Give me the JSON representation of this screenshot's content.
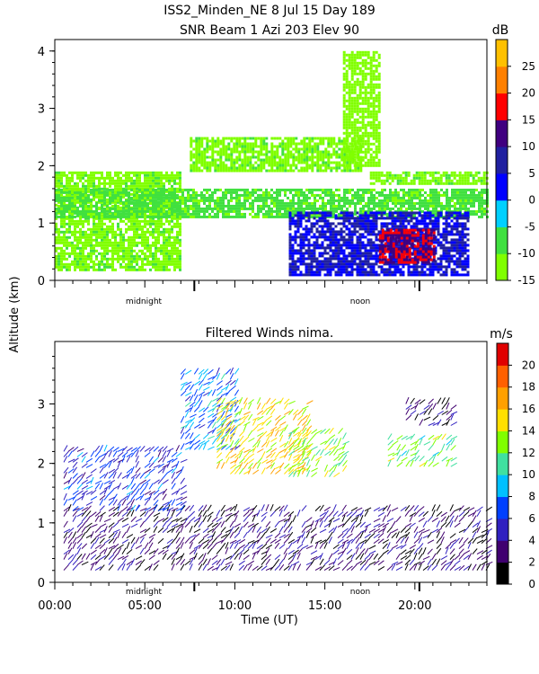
{
  "header": {
    "line1": "ISS2_Minden_NE    8 Jul 15 Day 189",
    "line2": "SNR Beam 1 Azi 203 Elev 90"
  },
  "shared": {
    "ylabel": "Altitude (km)",
    "xlabel": "Time (UT)",
    "marker_midnight": "midnight",
    "marker_noon": "noon"
  },
  "chart_data": [
    {
      "type": "heatmap",
      "title": "SNR Beam 1 Azi 203 Elev 90",
      "ylabel": "Altitude (km)",
      "y_ticks": [
        0,
        1,
        2,
        3,
        4
      ],
      "ylim": [
        0,
        4.2
      ],
      "xlim": [
        0,
        24
      ],
      "colorbar": {
        "unit": "dB",
        "range": [
          -15,
          30
        ],
        "ticks": [
          -15,
          -10,
          -5,
          0,
          5,
          10,
          15,
          20,
          25
        ],
        "colors": [
          "#80ff00",
          "#40e040",
          "#00d0ff",
          "#0000ff",
          "#2020a0",
          "#400080",
          "#ff0000",
          "#ff8000",
          "#ffc000"
        ]
      },
      "regions": [
        {
          "x": [
            0,
            7
          ],
          "y": [
            0.2,
            1.9
          ],
          "level": -12
        },
        {
          "x": [
            0,
            24
          ],
          "y": [
            1.1,
            1.6
          ],
          "level": -8
        },
        {
          "x": [
            7.5,
            17
          ],
          "y": [
            1.9,
            2.5
          ],
          "level": -12
        },
        {
          "x": [
            17.5,
            24
          ],
          "y": [
            1.7,
            1.9
          ],
          "level": -12
        },
        {
          "x": [
            16,
            18
          ],
          "y": [
            2.0,
            4.0
          ],
          "level": -13
        },
        {
          "x": [
            13,
            23
          ],
          "y": [
            0.1,
            1.2
          ],
          "level": 5
        },
        {
          "x": [
            18,
            21
          ],
          "y": [
            0.3,
            0.9
          ],
          "level": 15
        }
      ]
    },
    {
      "type": "scatter",
      "title": "Filtered Winds nima.",
      "xlabel": "Time (UT)",
      "ylabel": "Altitude (km)",
      "x_ticks": [
        "00:00",
        "05:00",
        "10:00",
        "15:00",
        "20:00"
      ],
      "x_tick_values": [
        0,
        5,
        10,
        15,
        20
      ],
      "y_ticks": [
        0,
        1,
        2,
        3
      ],
      "xlim": [
        0,
        24
      ],
      "ylim": [
        0,
        4.05
      ],
      "colorbar": {
        "unit": "m/s",
        "range": [
          0,
          22
        ],
        "ticks": [
          0,
          2,
          4,
          6,
          8,
          10,
          12,
          14,
          16,
          18,
          20
        ],
        "colors": [
          "#000000",
          "#400070",
          "#3020c0",
          "#0040ff",
          "#00c0ff",
          "#40e0a0",
          "#80ff00",
          "#ffe000",
          "#ffa000",
          "#ff6000",
          "#e00000"
        ]
      },
      "regions": [
        {
          "x": [
            0.5,
            24
          ],
          "y": [
            0.2,
            1.2
          ],
          "speed": 3
        },
        {
          "x": [
            0.5,
            7
          ],
          "y": [
            1.2,
            2.2
          ],
          "speed": 6
        },
        {
          "x": [
            7,
            10
          ],
          "y": [
            2.2,
            3.5
          ],
          "speed": 8
        },
        {
          "x": [
            9,
            14
          ],
          "y": [
            1.8,
            3.0
          ],
          "speed": 15
        },
        {
          "x": [
            13,
            16
          ],
          "y": [
            1.7,
            2.5
          ],
          "speed": 13
        },
        {
          "x": [
            18.5,
            22
          ],
          "y": [
            1.9,
            2.4
          ],
          "speed": 12
        },
        {
          "x": [
            19.5,
            22
          ],
          "y": [
            2.6,
            3.0
          ],
          "speed": 3
        }
      ]
    }
  ]
}
